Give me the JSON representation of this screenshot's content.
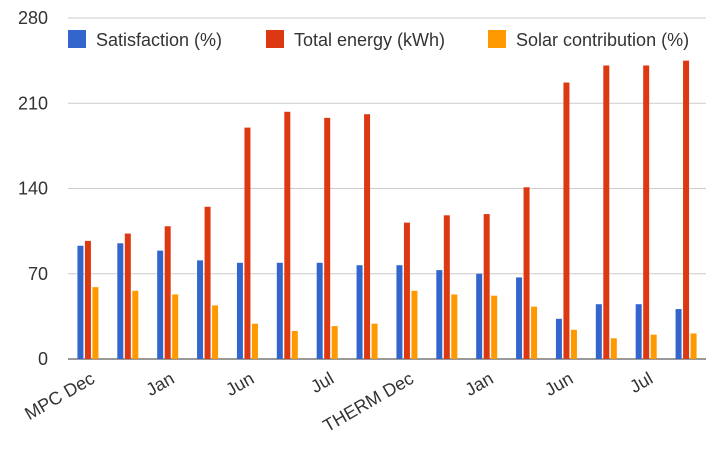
{
  "chart_data": {
    "type": "bar",
    "title": "",
    "xlabel": "",
    "ylabel": "",
    "ylim": [
      0,
      280
    ],
    "yticks": [
      0,
      70,
      140,
      210,
      280
    ],
    "grid": "horizontal",
    "legend_position": "top",
    "categories": [
      "MPC Dec",
      "",
      "Jan",
      "",
      "Jun",
      "",
      "Jul",
      "",
      "THERM Dec",
      "",
      "Jan",
      "",
      "Jun",
      "",
      "Jul",
      ""
    ],
    "series": [
      {
        "name": "Satisfaction (%)",
        "color": "#3366cc",
        "values": [
          93,
          95,
          89,
          81,
          79,
          79,
          79,
          77,
          77,
          73,
          70,
          67,
          33,
          45,
          45,
          41
        ]
      },
      {
        "name": "Total energy (kWh)",
        "color": "#dc3912",
        "values": [
          97,
          103,
          109,
          125,
          190,
          203,
          198,
          201,
          112,
          118,
          119,
          141,
          227,
          241,
          241,
          245
        ]
      },
      {
        "name": "Solar contribution (%)",
        "color": "#ff9900",
        "values": [
          59,
          56,
          53,
          44,
          29,
          23,
          27,
          29,
          56,
          53,
          52,
          43,
          24,
          17,
          20,
          21
        ]
      }
    ]
  }
}
